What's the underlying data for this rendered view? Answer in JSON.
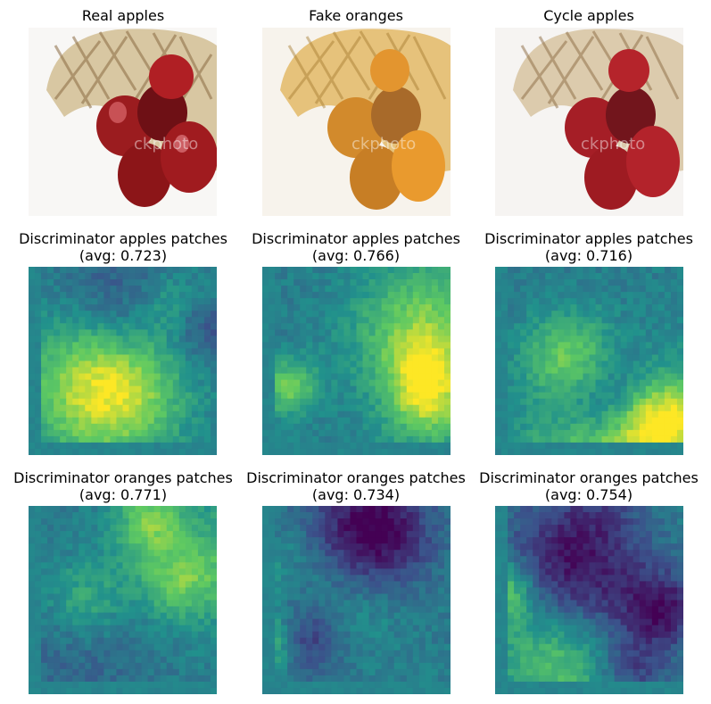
{
  "figure": {
    "rows": [
      {
        "panels": [
          {
            "title": "Real apples",
            "kind": "photo",
            "variant": "real"
          },
          {
            "title": "Fake oranges",
            "kind": "photo",
            "variant": "fake"
          },
          {
            "title": "Cycle apples",
            "kind": "photo",
            "variant": "cycle"
          }
        ]
      },
      {
        "panels": [
          {
            "title": "Discriminator apples patches",
            "avg": "(avg: 0.723)",
            "kind": "heatmap",
            "seed": 11
          },
          {
            "title": "Discriminator apples patches",
            "avg": "(avg: 0.766)",
            "kind": "heatmap",
            "seed": 23
          },
          {
            "title": "Discriminator apples patches",
            "avg": "(avg: 0.716)",
            "kind": "heatmap",
            "seed": 37
          }
        ]
      },
      {
        "panels": [
          {
            "title": "Discriminator oranges patches",
            "avg": "(avg: 0.771)",
            "kind": "heatmap",
            "seed": 41
          },
          {
            "title": "Discriminator oranges patches",
            "avg": "(avg: 0.734)",
            "kind": "heatmap",
            "seed": 53
          },
          {
            "title": "Discriminator oranges patches",
            "avg": "(avg: 0.754)",
            "kind": "heatmap",
            "seed": 67
          }
        ]
      }
    ],
    "colormap": [
      "#440154",
      "#3b528b",
      "#21918c",
      "#5ec962",
      "#fde725"
    ],
    "watermark": "ckphoto"
  }
}
